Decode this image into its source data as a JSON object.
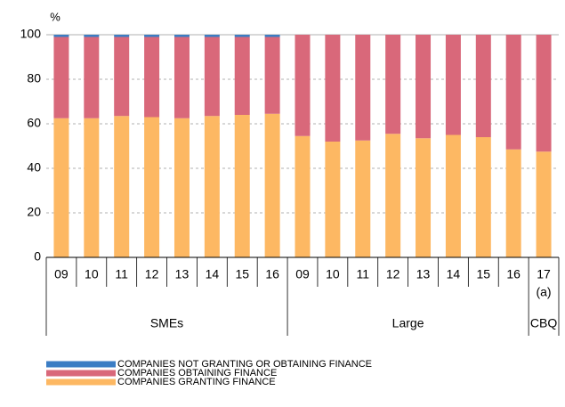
{
  "chart_data": {
    "type": "stacked_bar",
    "y_unit": "%",
    "groups": [
      {
        "name": "SMEs",
        "categories": [
          "09",
          "10",
          "11",
          "12",
          "13",
          "14",
          "15",
          "16"
        ]
      },
      {
        "name": "Large",
        "categories": [
          "09",
          "10",
          "11",
          "12",
          "13",
          "14",
          "15",
          "16"
        ]
      },
      {
        "name": "CBQ",
        "categories": [
          "17"
        ],
        "annotation": "(a)"
      }
    ],
    "series": [
      {
        "name": "COMPANIES GRANTING FINANCE",
        "color": "#fdb863",
        "values": [
          62.5,
          62.5,
          63.5,
          63,
          62.5,
          63.5,
          64,
          64.5,
          54.5,
          52,
          52.5,
          55.5,
          53.5,
          55,
          54,
          48.5,
          47.5
        ]
      },
      {
        "name": "COMPANIES OBTAINING FINANCE",
        "color": "#d9687a",
        "values": [
          36.5,
          36.5,
          35.5,
          36,
          36.5,
          35.5,
          35,
          34.5,
          45.5,
          48,
          47.5,
          44.5,
          46.5,
          45,
          46,
          51.5,
          52.5
        ]
      },
      {
        "name": "COMPANIES NOT GRANTING OR OBTAINING FINANCE",
        "color": "#3b7dc4",
        "values": [
          1,
          1,
          1,
          1,
          1,
          1,
          1,
          1,
          0,
          0,
          0,
          0,
          0,
          0,
          0,
          0,
          0
        ]
      }
    ],
    "ylim": [
      0,
      100
    ],
    "yticks": [
      0,
      20,
      40,
      60,
      80,
      100
    ],
    "grid": true
  }
}
